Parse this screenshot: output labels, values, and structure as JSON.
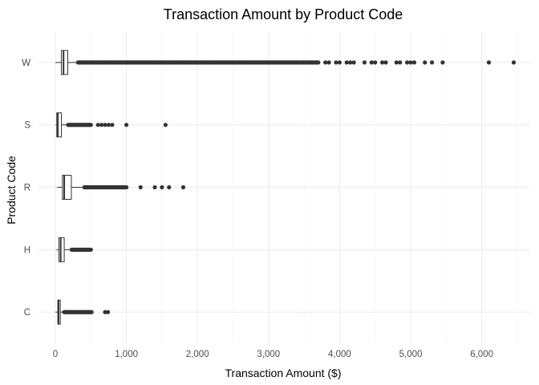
{
  "chart_data": {
    "type": "boxplot",
    "orientation": "horizontal",
    "title": "Transaction Amount by Product Code",
    "xlabel": "Transaction Amount ($)",
    "ylabel": "Product Code",
    "xlim": [
      -250,
      6750
    ],
    "x_ticks": [
      0,
      1000,
      2000,
      3000,
      4000,
      5000,
      6000
    ],
    "x_tick_labels": [
      "0",
      "1,000",
      "2,000",
      "3,000",
      "4,000",
      "5,000",
      "6,000"
    ],
    "grid": true,
    "categories": [
      "C",
      "H",
      "R",
      "S",
      "W"
    ],
    "boxes": [
      {
        "category": "C",
        "whisker_low": 0.5,
        "q1": 35,
        "median": 45,
        "q3": 70,
        "whisker_high": 120,
        "outlier_range": [
          125,
          510
        ],
        "outliers": [
          700,
          740
        ]
      },
      {
        "category": "H",
        "whisker_low": 15,
        "q1": 50,
        "median": 75,
        "q3": 125,
        "whisker_high": 225,
        "outlier_range": [
          230,
          480
        ],
        "outliers": [
          500
        ]
      },
      {
        "category": "R",
        "whisker_low": 25,
        "q1": 100,
        "median": 125,
        "q3": 225,
        "whisker_high": 400,
        "outlier_range": [
          410,
          1000
        ],
        "outliers": [
          1200,
          1400,
          1500,
          1600,
          1800
        ]
      },
      {
        "category": "S",
        "whisker_low": 5,
        "q1": 20,
        "median": 35,
        "q3": 85,
        "whisker_high": 175,
        "outlier_range": [
          180,
          500
        ],
        "outliers": [
          600,
          650,
          700,
          750,
          800,
          1000,
          1550
        ]
      },
      {
        "category": "W",
        "whisker_low": 1,
        "q1": 85,
        "median": 115,
        "q3": 175,
        "whisker_high": 310,
        "outlier_range": [
          320,
          3700
        ],
        "outliers": [
          3800,
          3850,
          3950,
          4000,
          4100,
          4150,
          4200,
          4350,
          4450,
          4500,
          4600,
          4650,
          4800,
          4850,
          4950,
          5000,
          5050,
          5200,
          5300,
          5450,
          6100,
          6450
        ]
      }
    ]
  }
}
